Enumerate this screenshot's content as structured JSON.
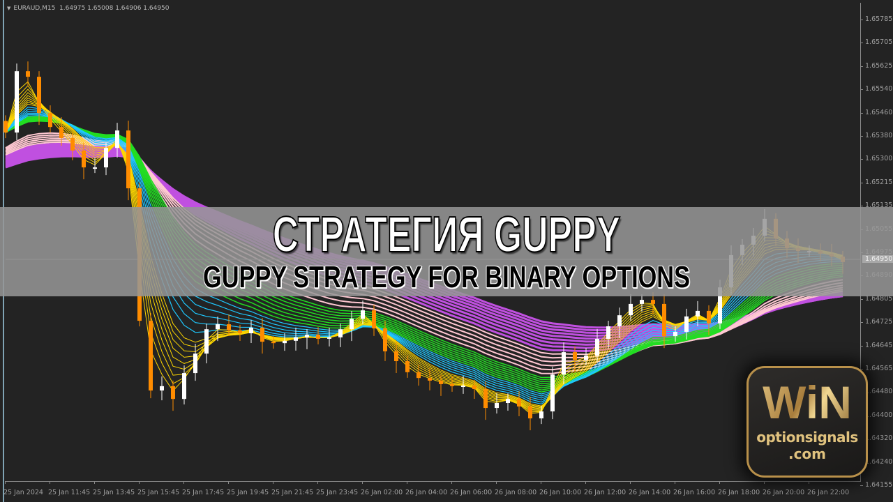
{
  "header": {
    "symbol": "EURAUD,M15",
    "ohlc": "1.64975 1.65008 1.64906 1.64950"
  },
  "banner": {
    "title": "СТРАТЕГИЯ GUPPY",
    "subtitle": "GUPPY STRATEGY FOR BINARY OPTIONS"
  },
  "logo": {
    "brand": "WiN",
    "site": "optionsignals",
    "domain": ".com"
  },
  "colors": {
    "background": "#232323",
    "bull_candle": "#ffffff",
    "bear_candle": "#ff8c00",
    "short_mma": "#ffd700",
    "mid_mma_1": "#1ec8ff",
    "mid_mma_2": "#22dd22",
    "long_mma_1": "#ffc8d2",
    "long_mma_2": "#c050e0",
    "logo_gold": "#c9a45a"
  },
  "chart_data": {
    "type": "candlestick",
    "symbol": "EURAUD",
    "timeframe": "M15",
    "indicator": "Guppy multiple moving averages",
    "current_price": "1.64950",
    "y_ticks": [
      "1.65785",
      "1.65705",
      "1.65625",
      "1.65540",
      "1.65460",
      "1.65380",
      "1.65300",
      "1.65215",
      "1.65135",
      "1.65055",
      "1.64975",
      "1.64890",
      "1.64805",
      "1.64725",
      "1.64645",
      "1.64565",
      "1.64480",
      "1.64400",
      "1.64320",
      "1.64240",
      "1.64155"
    ],
    "x_ticks": [
      "25 Jan 2024",
      "25 Jan 11:45",
      "25 Jan 13:45",
      "25 Jan 15:45",
      "25 Jan 17:45",
      "25 Jan 19:45",
      "25 Jan 21:45",
      "25 Jan 23:45",
      "26 Jan 02:00",
      "26 Jan 04:00",
      "26 Jan 06:00",
      "26 Jan 08:00",
      "26 Jan 10:00",
      "26 Jan 12:00",
      "26 Jan 14:00",
      "26 Jan 16:00",
      "26 Jan 18:00",
      "26 Jan 20:00",
      "26 Jan 22:00"
    ],
    "ylim": [
      1.64155,
      1.65785
    ],
    "grid": false,
    "close": [
      1.65396,
      1.65607,
      1.65588,
      1.65463,
      1.65415,
      1.65377,
      1.65334,
      1.65276,
      1.65276,
      1.65343,
      1.65403,
      1.65204,
      1.64748,
      1.64508,
      1.64523,
      1.64479,
      1.64568,
      1.64635,
      1.64719,
      1.64736,
      1.64715,
      1.64705,
      1.64724,
      1.64676,
      1.64671,
      1.64679,
      1.64691,
      1.647,
      1.64686,
      1.64691,
      1.64719,
      1.64755,
      1.64784,
      1.64722,
      1.64643,
      1.64609,
      1.64571,
      1.64551,
      1.64542,
      1.6453,
      1.64523,
      1.64525,
      1.64513,
      1.64448,
      1.64465,
      1.64479,
      1.64453,
      1.64412,
      1.64436,
      1.64563,
      1.6464,
      1.64614,
      1.64628,
      1.64686,
      1.64729,
      1.64767,
      1.64806,
      1.6482,
      1.64806,
      1.64695,
      1.6471,
      1.64763,
      1.64782,
      1.64739,
      1.64863,
      1.64974,
      1.6501,
      1.65041,
      1.65099,
      1.65031,
      1.64998,
      1.64988,
      1.64988,
      1.64979,
      1.64969,
      1.6495
    ]
  }
}
